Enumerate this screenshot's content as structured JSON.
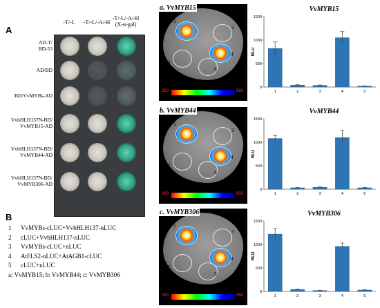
{
  "panel_a": {
    "letter": "A",
    "column_headers": [
      "-T/-L",
      "-T/-L/-A/-H",
      "-T/-L/-A/-H\n(X-α-gal)"
    ],
    "rows": [
      {
        "label_lines": [
          "AD-T/",
          "BD-53"
        ],
        "growth": [
          1,
          1,
          1
        ],
        "blue": true
      },
      {
        "label_lines": [
          "AD/BD"
        ],
        "growth": [
          1,
          0,
          0
        ],
        "blue": false
      },
      {
        "label_lines": [
          "BD/VvMYBs-AD"
        ],
        "growth": [
          1,
          0,
          0
        ],
        "blue": false
      },
      {
        "label_lines": [
          "VvbHLH137N-BD/",
          "VvMYB15-AD"
        ],
        "growth": [
          1,
          1,
          1
        ],
        "blue": true
      },
      {
        "label_lines": [
          "VvbHLH137N-BD/",
          "VvMYB44-AD"
        ],
        "growth": [
          1,
          1,
          1
        ],
        "blue": true
      },
      {
        "label_lines": [
          "VvbHLH137N-BD/",
          "VvMYB306-AD"
        ],
        "growth": [
          1,
          1,
          1
        ],
        "blue": true
      }
    ]
  },
  "panel_b": {
    "letter": "B",
    "legend": [
      {
        "num": "1",
        "text": "VvMYBs-cLUC+VvbHLH137-nLUC"
      },
      {
        "num": "2",
        "text": "cLUC+VvbHLH137-nLUC"
      },
      {
        "num": "3",
        "text": "VvMYBs-cLUC+nLUC"
      },
      {
        "num": "4",
        "text": "AtFLS2-nLUC+AtAGB1-cLUC"
      },
      {
        "num": "5",
        "text": "cLUC+nLUC"
      }
    ],
    "key_line": "a: VvMYB15;  b: VvMYB44;  c: VvMYB306"
  },
  "luc_panels": [
    {
      "title": "a. VvMYB15",
      "spot_labels": [
        "1",
        "2",
        "3",
        "4",
        "5"
      ],
      "scale_low": "200",
      "scale_high": "950"
    },
    {
      "title": "b. VvMYB44",
      "spot_labels": [
        "1",
        "2",
        "3",
        "4",
        "5"
      ],
      "scale_low": "200",
      "scale_high": "950"
    },
    {
      "title": "c. VvMYB306",
      "spot_labels": [
        "1",
        "2",
        "3",
        "4",
        "5"
      ],
      "scale_low": "200",
      "scale_high": "950"
    }
  ],
  "colors": {
    "bar": "#2e75b6",
    "bar_edge": "#1f4e79",
    "yeast_bg": "#3a3d40",
    "colony_blue": "#2e8b6e"
  },
  "chart_data": [
    {
      "type": "bar",
      "title": "VvMYB15",
      "categories": [
        "1",
        "2",
        "3",
        "4",
        "5"
      ],
      "values": [
        820,
        40,
        35,
        1050,
        20
      ],
      "errors": [
        140,
        10,
        8,
        130,
        5
      ],
      "ylabel": "RLU",
      "ylim": [
        0,
        1500
      ],
      "yticks": [
        0,
        500,
        1000,
        1500
      ]
    },
    {
      "type": "bar",
      "title": "VvMYB44",
      "categories": [
        "1",
        "2",
        "3",
        "4",
        "5"
      ],
      "values": [
        1080,
        30,
        40,
        1100,
        30
      ],
      "errors": [
        60,
        8,
        10,
        160,
        8
      ],
      "ylabel": "RLU",
      "ylim": [
        0,
        1500
      ],
      "yticks": [
        0,
        500,
        1000,
        1500
      ]
    },
    {
      "type": "bar",
      "title": "VvMYB306",
      "categories": [
        "1",
        "2",
        "3",
        "4",
        "5"
      ],
      "values": [
        1220,
        40,
        20,
        960,
        30
      ],
      "errors": [
        120,
        10,
        5,
        70,
        8
      ],
      "ylabel": "RLU",
      "ylim": [
        0,
        1500
      ],
      "yticks": [
        0,
        500,
        1000,
        1500
      ]
    }
  ]
}
